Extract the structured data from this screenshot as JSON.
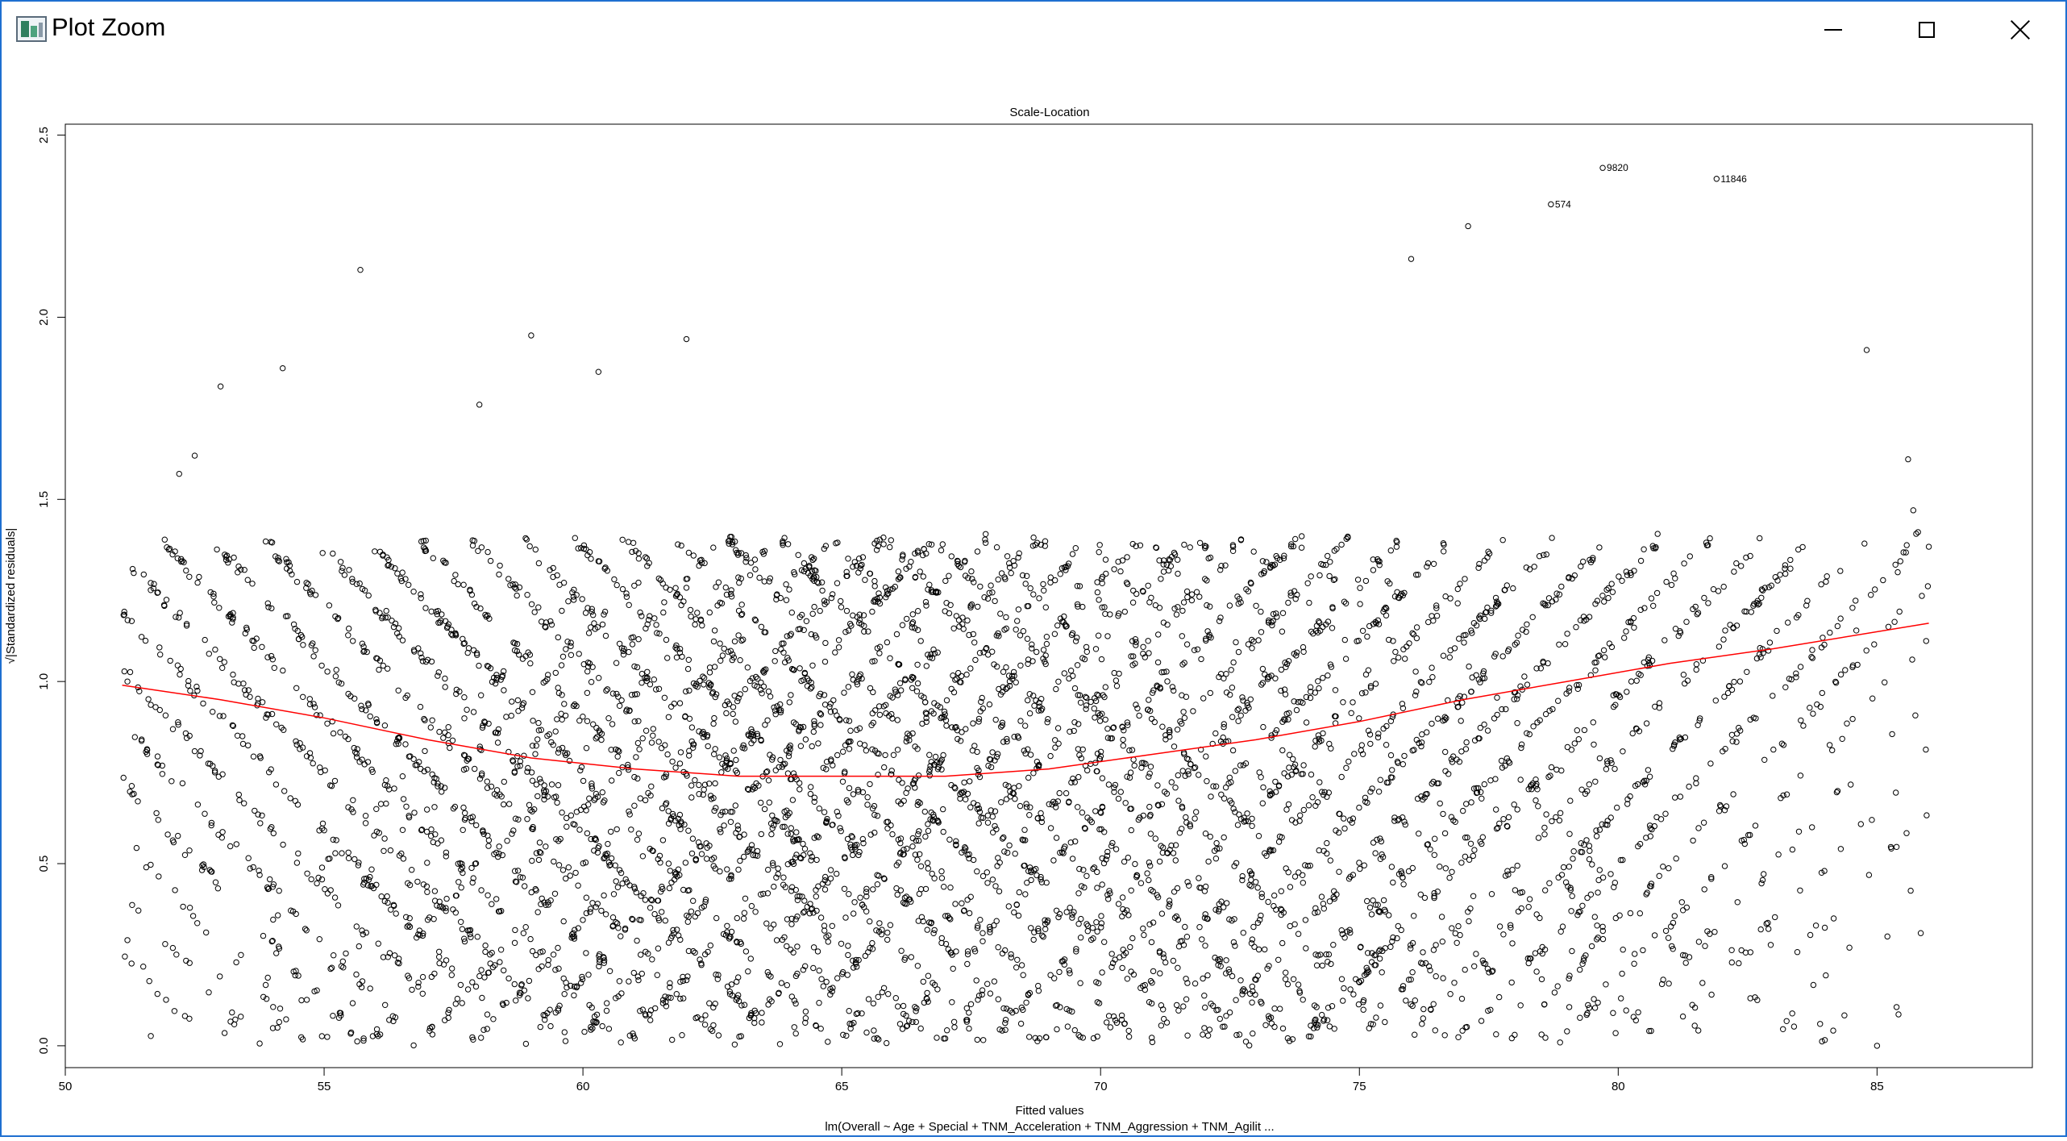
{
  "window": {
    "title": "Plot Zoom",
    "icon": "plot-zoom-app-icon",
    "controls": {
      "minimize": "minimize-icon",
      "maximize": "maximize-icon",
      "close": "close-icon"
    }
  },
  "colors": {
    "window_border": "#1e6fd0",
    "points": "#000000",
    "smoother": "#ff0000"
  },
  "chart_data": {
    "type": "scatter",
    "title": "Scale-Location",
    "xlabel": "Fitted values",
    "ylabel": "√|Standardized residuals|",
    "subtitle": "lm(Overall ~ Age + Special + TNM_Acceleration + TNM_Aggression + TNM_Agilit ...",
    "xlim": [
      50,
      88
    ],
    "ylim": [
      -0.06,
      2.53
    ],
    "x_ticks": [
      50,
      55,
      60,
      65,
      70,
      75,
      80,
      85
    ],
    "y_ticks": [
      0.0,
      0.5,
      1.0,
      1.5,
      2.0,
      2.5
    ],
    "x_tick_labels": [
      "50",
      "55",
      "60",
      "65",
      "70",
      "75",
      "80",
      "85"
    ],
    "y_tick_labels": [
      "0.0",
      "0.5",
      "1.0",
      "1.5",
      "2.0",
      "2.5"
    ],
    "marker": "open-circle",
    "grid": false,
    "smoother": {
      "color": "#ff0000",
      "x": [
        51.1,
        53,
        55,
        57,
        59,
        61,
        63,
        65,
        67,
        69,
        71,
        73,
        75,
        77,
        79,
        81,
        83,
        86
      ],
      "y": [
        0.99,
        0.95,
        0.9,
        0.84,
        0.79,
        0.76,
        0.74,
        0.74,
        0.74,
        0.76,
        0.8,
        0.84,
        0.89,
        0.95,
        1.0,
        1.05,
        1.09,
        1.16
      ]
    },
    "labeled_points": [
      {
        "label": "9820",
        "x": 79.7,
        "y": 2.41
      },
      {
        "label": "11846",
        "x": 81.9,
        "y": 2.38
      },
      {
        "label": "574",
        "x": 78.7,
        "y": 2.31
      }
    ],
    "extra_points": {
      "x": [
        51.2,
        51.2,
        55.7,
        77.1,
        76.0,
        59.0,
        62.0,
        60.3,
        58.0,
        53.0,
        52.2,
        52.5,
        54.2,
        84.8,
        85.6,
        85.7,
        86.0,
        85.4,
        84.6,
        84.9,
        85.2,
        79.9,
        61.0,
        71.0,
        67.0,
        78.0,
        83.9,
        85.0
      ],
      "y": [
        1.0,
        0.29,
        2.13,
        2.25,
        2.16,
        1.95,
        1.94,
        1.85,
        1.76,
        1.81,
        1.57,
        1.62,
        1.86,
        1.91,
        1.61,
        1.47,
        1.37,
        1.3,
        1.14,
        0.62,
        0.3,
        0.09,
        0.02,
        0.01,
        0.02,
        0.03,
        0.06,
        0.0
      ]
    },
    "residual_bands": {
      "description_free": true,
      "anchors": [
        51.8,
        52.8,
        53.8,
        54.8,
        55.8,
        56.8,
        57.8,
        58.8,
        59.8,
        60.8,
        61.8,
        62.8,
        63.8,
        64.8,
        65.8,
        66.8,
        67.8,
        68.8,
        69.8,
        70.8,
        71.8,
        72.8,
        73.8,
        74.8,
        75.8,
        76.8,
        77.8,
        78.8,
        79.8,
        80.8,
        81.8,
        82.8,
        83.8,
        84.8
      ],
      "weights": [
        0.25,
        0.35,
        0.5,
        0.6,
        0.75,
        0.85,
        0.9,
        0.95,
        1.0,
        1.0,
        1.0,
        1.0,
        1.0,
        1.0,
        1.0,
        1.0,
        1.0,
        1.0,
        1.0,
        1.0,
        1.0,
        0.95,
        0.9,
        0.85,
        0.8,
        0.7,
        0.6,
        0.5,
        0.4,
        0.35,
        0.3,
        0.25,
        0.15,
        0.1
      ],
      "x_range": [
        51.1,
        86.0
      ]
    }
  }
}
